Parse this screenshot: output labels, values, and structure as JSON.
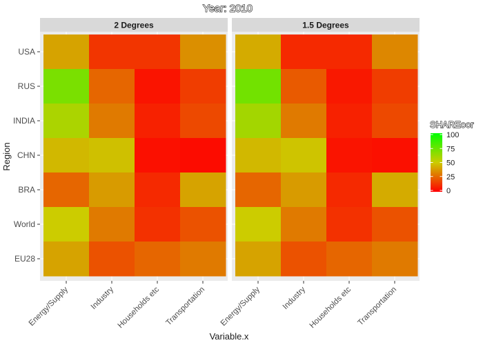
{
  "chart_data": {
    "type": "heatmap",
    "title": "Year: 2010",
    "xlabel": "Variable.x",
    "ylabel": "Region",
    "x_categories": [
      "Energy/Supply",
      "Industry",
      "Households etc",
      "Transportation"
    ],
    "y_categories": [
      "USA",
      "RUS",
      "INDIA",
      "CHN",
      "BRA",
      "World",
      "EU28"
    ],
    "panels": [
      {
        "name": "2 Degrees",
        "values": [
          [
            40,
            13,
            13,
            35
          ],
          [
            70,
            25,
            5,
            15
          ],
          [
            58,
            30,
            8,
            18
          ],
          [
            45,
            47,
            4,
            3
          ],
          [
            25,
            38,
            10,
            40
          ],
          [
            50,
            30,
            12,
            20
          ],
          [
            40,
            20,
            25,
            30
          ]
        ]
      },
      {
        "name": "1.5 Degrees",
        "values": [
          [
            42,
            10,
            10,
            33
          ],
          [
            72,
            22,
            6,
            15
          ],
          [
            60,
            30,
            8,
            18
          ],
          [
            45,
            48,
            5,
            4
          ],
          [
            25,
            38,
            10,
            42
          ],
          [
            50,
            30,
            12,
            20
          ],
          [
            40,
            20,
            25,
            30
          ]
        ]
      }
    ],
    "legend": {
      "title": "SHAREoor",
      "position": "right",
      "breaks": [
        100,
        75,
        50,
        25,
        0
      ],
      "range": [
        0,
        100
      ],
      "colors": {
        "low": "#ff0000",
        "mid": "#cccc00",
        "high": "#00ff00"
      }
    }
  }
}
